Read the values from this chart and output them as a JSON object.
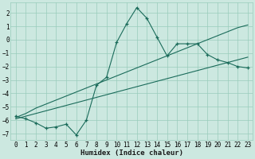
{
  "title": "",
  "xlabel": "Humidex (Indice chaleur)",
  "background_color": "#cce8e0",
  "grid_color": "#99ccbb",
  "line_color": "#1a6b5a",
  "xlim": [
    -0.5,
    23.5
  ],
  "ylim": [
    -7.5,
    2.8
  ],
  "yticks": [
    -7,
    -6,
    -5,
    -4,
    -3,
    -2,
    -1,
    0,
    1,
    2
  ],
  "xticks": [
    0,
    1,
    2,
    3,
    4,
    5,
    6,
    7,
    8,
    9,
    10,
    11,
    12,
    13,
    14,
    15,
    16,
    17,
    18,
    19,
    20,
    21,
    22,
    23
  ],
  "x": [
    0,
    1,
    2,
    3,
    4,
    5,
    6,
    7,
    8,
    9,
    10,
    11,
    12,
    13,
    14,
    15,
    16,
    17,
    18,
    19,
    20,
    21,
    22,
    23
  ],
  "y_main": [
    -5.7,
    -5.9,
    -6.2,
    -6.6,
    -6.5,
    -6.3,
    -7.1,
    -6.0,
    -3.4,
    -2.8,
    -0.2,
    1.2,
    2.4,
    1.6,
    0.2,
    -1.2,
    -0.3,
    -0.3,
    -0.3,
    -1.1,
    -1.5,
    -1.7,
    -2.0,
    -2.1
  ],
  "y_linear1": [
    -5.8,
    -5.5,
    -5.1,
    -4.8,
    -4.5,
    -4.2,
    -3.9,
    -3.6,
    -3.3,
    -3.0,
    -2.7,
    -2.4,
    -2.1,
    -1.8,
    -1.5,
    -1.2,
    -0.9,
    -0.6,
    -0.3,
    0.0,
    0.3,
    0.6,
    0.9,
    1.1
  ],
  "y_linear2": [
    -5.9,
    -5.7,
    -5.5,
    -5.3,
    -5.1,
    -4.9,
    -4.7,
    -4.5,
    -4.3,
    -4.1,
    -3.9,
    -3.7,
    -3.5,
    -3.3,
    -3.1,
    -2.9,
    -2.7,
    -2.5,
    -2.3,
    -2.1,
    -1.9,
    -1.7,
    -1.5,
    -1.3
  ],
  "xlabel_fontsize": 6.5,
  "tick_fontsize": 5.5
}
